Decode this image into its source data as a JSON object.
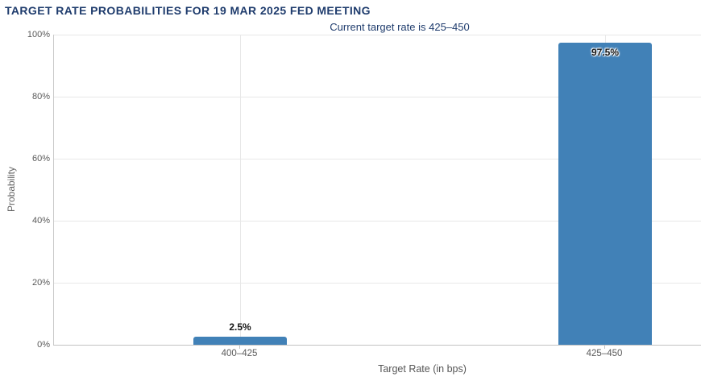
{
  "chart_data": {
    "type": "bar",
    "title": "TARGET RATE PROBABILITIES FOR 19 MAR 2025 FED MEETING",
    "subtitle": "Current target rate is 425–450",
    "categories": [
      "400–425",
      "425–450"
    ],
    "values": [
      2.5,
      97.5
    ],
    "value_labels": [
      "2.5%",
      "97.5%"
    ],
    "xlabel": "Target Rate (in bps)",
    "ylabel": "Probability",
    "ylim": [
      0,
      100
    ],
    "yticks": [
      0,
      20,
      40,
      60,
      80,
      100
    ],
    "ytick_labels": [
      "0%",
      "20%",
      "40%",
      "60%",
      "80%",
      "100%"
    ],
    "grid": true,
    "legend": "none",
    "colors": {
      "bar": "#4181b7",
      "title": "#1f3c6d",
      "tick_label": "#5a5a5a",
      "axis_title": "#666666",
      "gridline": "#e8e8e8",
      "axis_line": "#c6c6c6",
      "data_label": "#141414"
    }
  }
}
